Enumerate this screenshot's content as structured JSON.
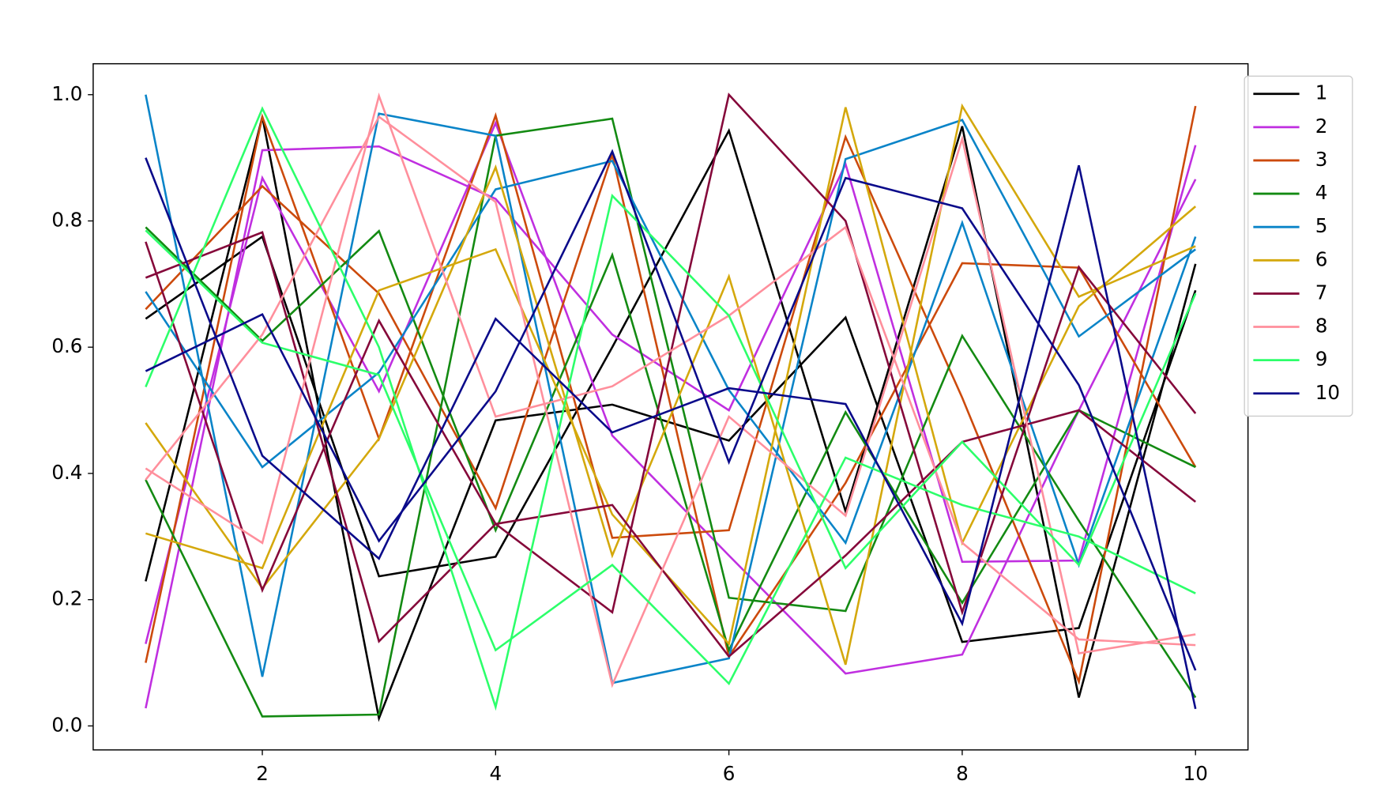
{
  "chart_data": {
    "type": "line",
    "x": [
      1,
      2,
      3,
      4,
      5,
      6,
      7,
      8,
      9,
      10
    ],
    "xlim": [
      0.55,
      10.45
    ],
    "xticks": [
      2,
      4,
      6,
      8,
      10
    ],
    "ylim": [
      -0.038,
      1.049
    ],
    "yticks": [
      {
        "value": 0,
        "label": "0.0"
      },
      0.2,
      0.4,
      0.6,
      0.8,
      {
        "value": 1,
        "label": "1.0"
      }
    ],
    "legend": "outside-upper-right",
    "series": [
      {
        "name": "1",
        "color": "#000000",
        "values": [
          [
            0.645,
            0.775,
            0.237,
            0.268,
            0.6,
            0.943,
            0.34,
            0.95,
            0.045,
            0.732
          ],
          [
            0.229,
            0.965,
            0.012,
            0.484,
            0.509,
            0.452,
            0.647,
            0.133,
            0.155,
            0.69
          ]
        ]
      },
      {
        "name": "2",
        "color": "#c02fe0",
        "values": [
          [
            0.028,
            0.912,
            0.918,
            0.835,
            0.62,
            0.5,
            0.89,
            0.26,
            0.262,
            0.92
          ],
          [
            0.13,
            0.868,
            0.53,
            0.955,
            0.46,
            0.27,
            0.083,
            0.113,
            0.5,
            0.866
          ]
        ]
      },
      {
        "name": "3",
        "color": "#cc4a0c",
        "values": [
          [
            0.66,
            0.855,
            0.685,
            0.345,
            0.905,
            0.11,
            0.385,
            0.733,
            0.726,
            0.41
          ],
          [
            0.1,
            0.965,
            0.455,
            0.967,
            0.298,
            0.31,
            0.933,
            0.52,
            0.07,
            0.982
          ]
        ]
      },
      {
        "name": "4",
        "color": "#138a12",
        "values": [
          [
            0.79,
            0.61,
            0.784,
            0.31,
            0.746,
            0.12,
            0.497,
            0.195,
            0.5,
            0.41
          ],
          [
            0.39,
            0.015,
            0.018,
            0.935,
            0.962,
            0.203,
            0.182,
            0.618,
            0.325,
            0.045
          ]
        ]
      },
      {
        "name": "5",
        "color": "#0a84c8",
        "values": [
          [
            1.0,
            0.078,
            0.97,
            0.935,
            0.068,
            0.107,
            0.898,
            0.96,
            0.617,
            0.755
          ],
          [
            0.688,
            0.41,
            0.56,
            0.85,
            0.895,
            0.532,
            0.29,
            0.797,
            0.255,
            0.775
          ]
        ]
      },
      {
        "name": "6",
        "color": "#d4a80c",
        "values": [
          [
            0.48,
            0.218,
            0.455,
            0.885,
            0.27,
            0.712,
            0.097,
            0.982,
            0.68,
            0.76
          ],
          [
            0.305,
            0.25,
            0.69,
            0.755,
            0.335,
            0.13,
            0.98,
            0.29,
            0.665,
            0.823
          ]
        ]
      },
      {
        "name": "7",
        "color": "#85083a",
        "values": [
          [
            0.767,
            0.215,
            0.642,
            0.32,
            0.18,
            1.0,
            0.8,
            0.18,
            0.727,
            0.495
          ],
          [
            0.71,
            0.782,
            0.134,
            0.32,
            0.35,
            0.11,
            0.27,
            0.45,
            0.5,
            0.355
          ]
        ]
      },
      {
        "name": "8",
        "color": "#ff8f9c",
        "values": [
          [
            0.408,
            0.29,
            0.998,
            0.49,
            0.538,
            0.65,
            0.79,
            0.29,
            0.137,
            0.128
          ],
          [
            0.39,
            0.62,
            0.965,
            0.83,
            0.065,
            0.49,
            0.333,
            0.93,
            0.115,
            0.145
          ]
        ]
      },
      {
        "name": "9",
        "color": "#2cff6a",
        "values": [
          [
            0.537,
            0.978,
            0.6,
            0.03,
            0.84,
            0.65,
            0.25,
            0.45,
            0.255,
            0.685
          ],
          [
            0.785,
            0.607,
            0.556,
            0.12,
            0.255,
            0.067,
            0.425,
            0.35,
            0.3,
            0.21
          ]
        ]
      },
      {
        "name": "10",
        "color": "#0a0a8a",
        "values": [
          [
            0.9,
            0.428,
            0.265,
            0.645,
            0.465,
            0.535,
            0.51,
            0.162,
            0.888,
            0.027
          ],
          [
            0.562,
            0.652,
            0.293,
            0.53,
            0.91,
            0.418,
            0.868,
            0.82,
            0.54,
            0.088
          ]
        ]
      }
    ]
  }
}
